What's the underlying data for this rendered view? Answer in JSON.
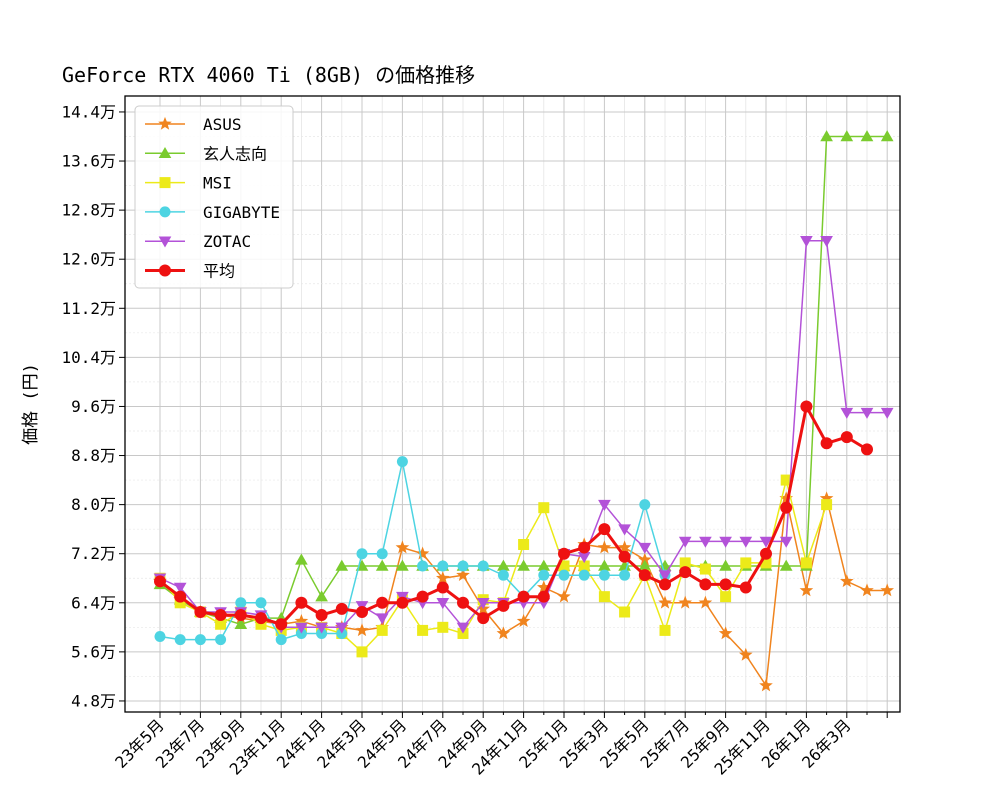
{
  "chart_data": {
    "type": "line",
    "title": "GeForce RTX 4060 Ti (8GB) の価格推移",
    "xlabel": "",
    "ylabel": "価格 (円)",
    "ylim": [
      46200,
      146600
    ],
    "y_ticks": [
      48000,
      56000,
      64000,
      72000,
      80000,
      88000,
      96000,
      104000,
      112000,
      120000,
      128000,
      136000,
      144000
    ],
    "y_tick_labels": [
      "4.8万",
      "5.6万",
      "6.4万",
      "7.2万",
      "8.0万",
      "8.8万",
      "9.6万",
      "10.4万",
      "11.2万",
      "12.0万",
      "12.8万",
      "13.6万",
      "14.4万"
    ],
    "x_tick_labels": [
      "23年5月",
      "23年7月",
      "23年9月",
      "23年11月",
      "24年1月",
      "24年3月",
      "24年5月",
      "24年7月",
      "24年9月",
      "24年11月",
      "25年1月",
      "25年3月",
      "25年5月",
      "25年7月",
      "25年9月",
      "25年11月",
      "26年1月",
      "26年3月"
    ],
    "grid": true,
    "legend_position": "upper-left",
    "series": [
      {
        "name": "ASUS",
        "color": "#f0841e",
        "marker": "star",
        "line_width": 1.5,
        "values": [
          67500,
          64500,
          62500,
          62000,
          61500,
          61000,
          60500,
          61000,
          60000,
          60000,
          59500,
          60000,
          73000,
          72000,
          68000,
          68500,
          63000,
          59000,
          61000,
          66500,
          65000,
          73500,
          73000,
          73000,
          71000,
          64000,
          64000,
          64000,
          59000,
          55500,
          50500,
          81000,
          66000,
          81000,
          67500,
          66000,
          66000
        ]
      },
      {
        "name": "玄人志向",
        "color": "#7acb2e",
        "marker": "triangle-up",
        "line_width": 1.5,
        "values": [
          67000,
          64500,
          62500,
          61500,
          60500,
          61500,
          61500,
          71000,
          65000,
          70000,
          70000,
          70000,
          70000,
          70000,
          70000,
          70000,
          70000,
          70000,
          70000,
          70000,
          70000,
          70000,
          70000,
          70000,
          70000,
          70000,
          70000,
          70000,
          70000,
          70000,
          70000,
          70000,
          70000,
          140000,
          140000,
          140000,
          140000
        ]
      },
      {
        "name": "MSI",
        "color": "#ecea19",
        "marker": "square",
        "line_width": 1.5,
        "values": [
          68000,
          64000,
          62500,
          60500,
          62500,
          60500,
          59500,
          60000,
          60000,
          59000,
          56000,
          59500,
          64500,
          59500,
          60000,
          59000,
          64500,
          64000,
          73500,
          79500,
          70000,
          70000,
          65000,
          62500,
          68500,
          59500,
          70500,
          69500,
          65000,
          70500,
          70500,
          84000,
          70500,
          80000
        ]
      },
      {
        "name": "GIGABYTE",
        "color": "#4dd4e2",
        "marker": "circle",
        "line_width": 1.5,
        "values": [
          58500,
          58000,
          58000,
          58000,
          64000,
          64000,
          58000,
          59000,
          59000,
          59000,
          72000,
          72000,
          87000,
          70000,
          70000,
          70000,
          70000,
          68500,
          65000,
          68500,
          68500,
          68500,
          68500,
          68500,
          80000,
          68500
        ]
      },
      {
        "name": "ZOTAC",
        "color": "#b352d8",
        "marker": "triangle-down",
        "line_width": 1.5,
        "values": [
          68000,
          66500,
          62500,
          62500,
          62500,
          62000,
          60000,
          60000,
          60000,
          60000,
          63500,
          61500,
          65000,
          64000,
          64000,
          60000,
          64000,
          64000,
          64000,
          64000,
          72000,
          71500,
          80000,
          76000,
          73000,
          68500,
          74000,
          74000,
          74000,
          74000,
          74000,
          74000,
          123000,
          123000,
          95000,
          95000,
          95000
        ]
      },
      {
        "name": "平均",
        "color": "#ee1111",
        "marker": "circle",
        "line_width": 3,
        "values": [
          67500,
          65000,
          62500,
          62000,
          62000,
          61500,
          60500,
          64000,
          62000,
          63000,
          62500,
          64000,
          64000,
          65000,
          66500,
          64000,
          61500,
          63500,
          65000,
          65000,
          72000,
          73000,
          76000,
          71500,
          68500,
          67000,
          69000,
          67000,
          67000,
          66500,
          72000,
          79500,
          96000,
          90000,
          91000,
          89000
        ]
      }
    ]
  }
}
